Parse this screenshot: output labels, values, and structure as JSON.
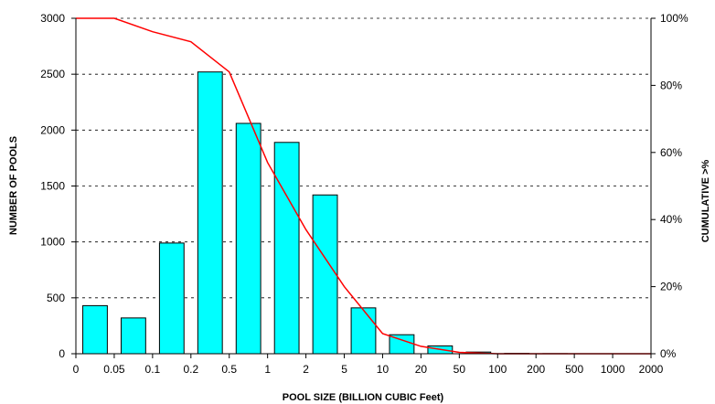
{
  "chart_data": {
    "type": "bar",
    "categories": [
      "0.05",
      "0.1",
      "0.2",
      "0.5",
      "1",
      "2",
      "5",
      "10",
      "20",
      "50",
      "100",
      "200",
      "500",
      "1000",
      "2000"
    ],
    "x_tick_labels": [
      "0",
      "0.05",
      "0.1",
      "0.2",
      "0.5",
      "1",
      "2",
      "5",
      "10",
      "20",
      "50",
      "100",
      "200",
      "500",
      "1000",
      "2000"
    ],
    "series": [
      {
        "type": "bar",
        "axis": "left",
        "color": "#00FFFF",
        "values": [
          430,
          320,
          990,
          2520,
          2060,
          1890,
          1420,
          410,
          170,
          70,
          15,
          3,
          1,
          0,
          0
        ]
      },
      {
        "type": "line",
        "axis": "right",
        "color": "#FF0000",
        "x": [
          "0",
          "0.05",
          "0.1",
          "0.2",
          "0.5",
          "1",
          "2",
          "5",
          "10",
          "20",
          "50",
          "100",
          "200",
          "500",
          "1000",
          "2000"
        ],
        "values": [
          100,
          100,
          96,
          93,
          84,
          57,
          37,
          20,
          6,
          2.2,
          0.4,
          0,
          0,
          0,
          0,
          0
        ]
      }
    ],
    "xlabel": "POOL SIZE (BILLION CUBIC Feet)",
    "ylabel": "NUMBER OF POOLS",
    "y2label": "CUMULATIVE >%",
    "ylim": [
      0,
      3000
    ],
    "yticks": [
      0,
      500,
      1000,
      1500,
      2000,
      2500,
      3000
    ],
    "y2lim": [
      0,
      100
    ],
    "y2ticks": [
      0,
      20,
      40,
      60,
      80,
      100
    ],
    "y2_tick_labels": [
      "0%",
      "20%",
      "40%",
      "60%",
      "80%",
      "100%"
    ],
    "grid": "horizontal dashed",
    "legend": "none"
  }
}
